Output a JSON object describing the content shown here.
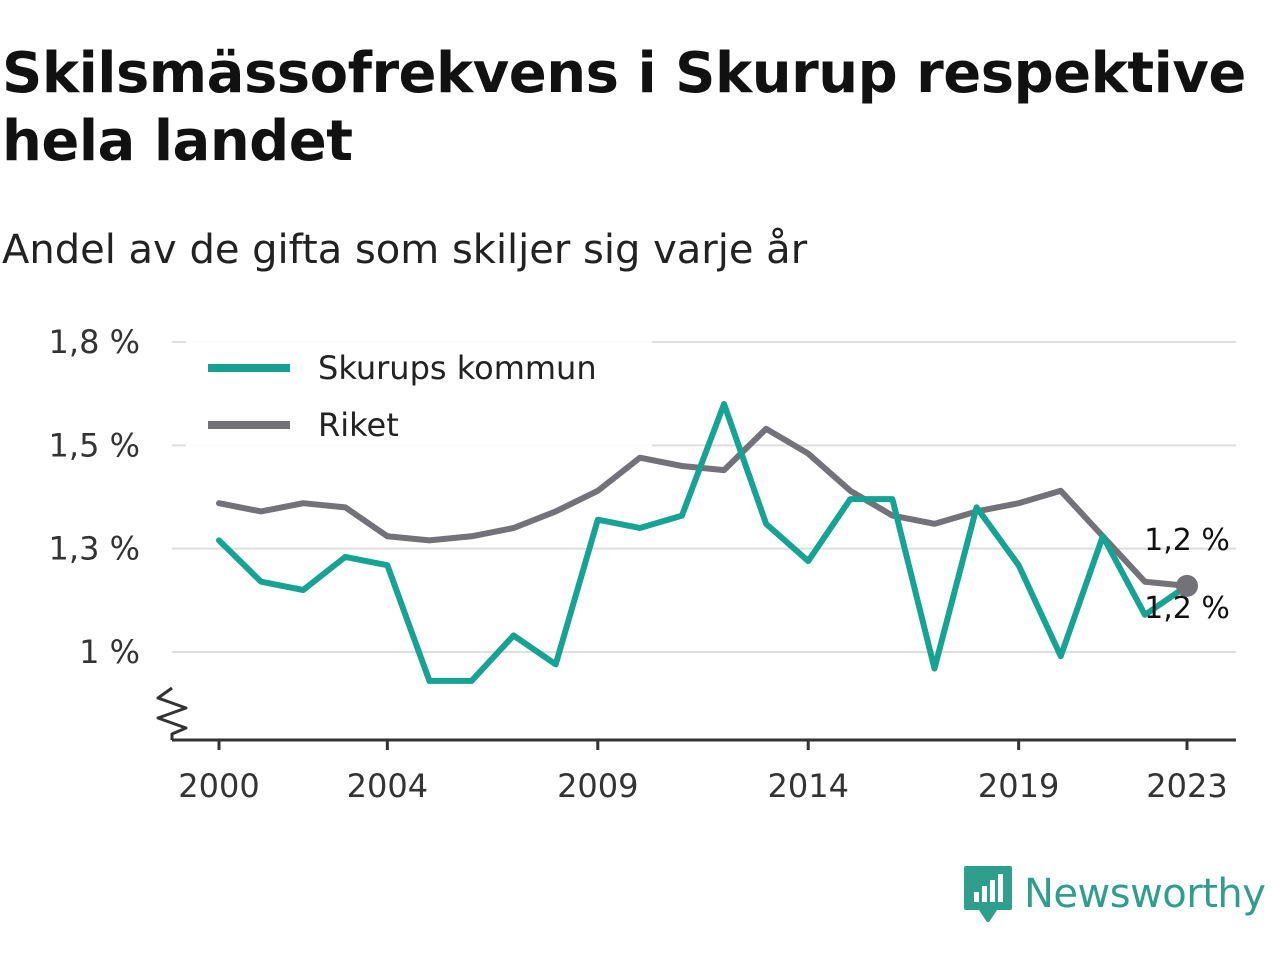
{
  "title": "Skilsmässofrekvens i Skurup respektive hela landet",
  "subtitle": "Andel av de gifta som skiljer sig varje år",
  "brand": {
    "name": "Newsworthy",
    "icon": "bar-chart-speech-bubble-icon",
    "color": "#2f9e8c"
  },
  "chart_data": {
    "type": "line",
    "x": [
      2000,
      2001,
      2002,
      2003,
      2004,
      2005,
      2006,
      2007,
      2008,
      2009,
      2010,
      2011,
      2012,
      2013,
      2014,
      2015,
      2016,
      2017,
      2018,
      2019,
      2020,
      2021,
      2022,
      2023
    ],
    "x_ticks": [
      2000,
      2004,
      2009,
      2014,
      2019,
      2023
    ],
    "x_tick_labels": [
      "2000",
      "2004",
      "2009",
      "2014",
      "2019",
      "2023"
    ],
    "y_ticks": [
      1.0,
      1.25,
      1.5,
      1.75
    ],
    "y_tick_labels": [
      "1 %",
      "1,3 %",
      "1,5 %",
      "1,8 %"
    ],
    "ylim": [
      0.8,
      1.75
    ],
    "y_axis_broken": true,
    "grid": true,
    "legend_position": "top-left",
    "series": [
      {
        "name": "Skurups kommun",
        "color": "#16a394",
        "values": [
          1.27,
          1.17,
          1.15,
          1.23,
          1.21,
          0.93,
          0.93,
          1.04,
          0.97,
          1.32,
          1.3,
          1.33,
          1.6,
          1.31,
          1.22,
          1.37,
          1.37,
          0.96,
          1.35,
          1.21,
          0.99,
          1.28,
          1.09,
          1.16
        ],
        "end_label": "1,2 %"
      },
      {
        "name": "Riket",
        "color": "#737278",
        "values": [
          1.36,
          1.34,
          1.36,
          1.35,
          1.28,
          1.27,
          1.28,
          1.3,
          1.34,
          1.39,
          1.47,
          1.45,
          1.44,
          1.54,
          1.48,
          1.39,
          1.33,
          1.31,
          1.34,
          1.36,
          1.39,
          1.28,
          1.17,
          1.16
        ],
        "end_label": "1,2 %"
      }
    ]
  }
}
